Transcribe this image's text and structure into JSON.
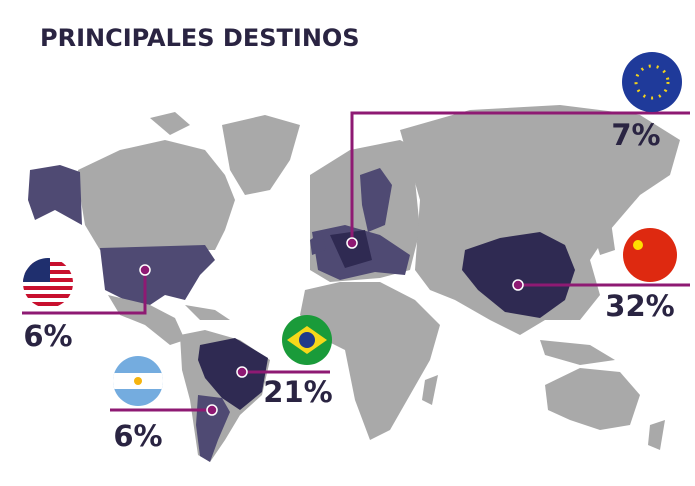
{
  "title": "PRINCIPALES DESTINOS",
  "callouts": {
    "eu": "7%",
    "china": "32%",
    "brazil": "21%",
    "usa": "6%",
    "argentina": "6%"
  }
}
